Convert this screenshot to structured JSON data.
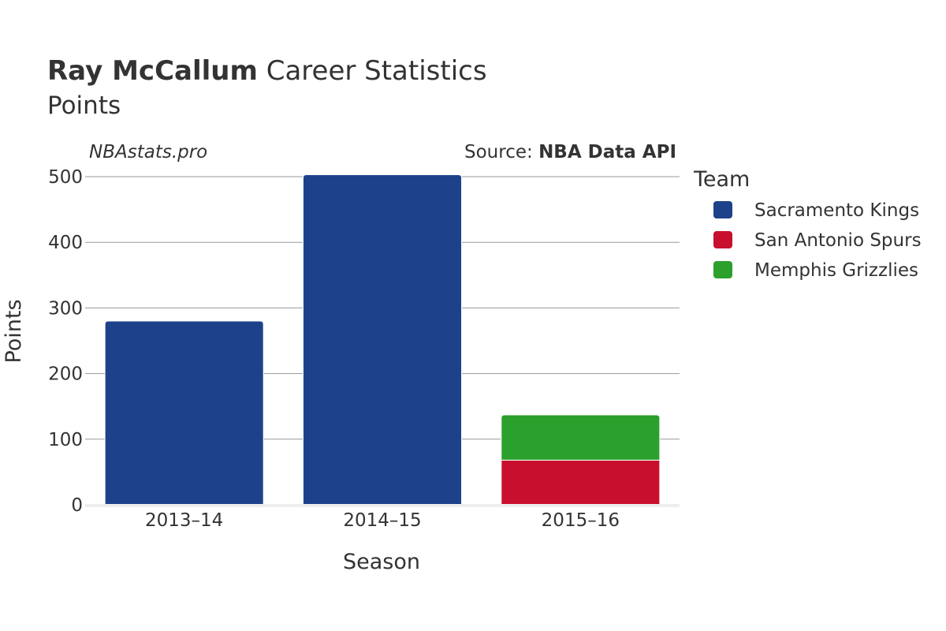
{
  "header": {
    "title_bold": "Ray McCallum",
    "title_rest": " Career Statistics",
    "subtitle": "Points"
  },
  "watermark": "NBAstats.pro",
  "source": {
    "prefix": "Source: ",
    "name": "NBA Data API"
  },
  "legend": {
    "title": "Team",
    "placement": "right",
    "items": [
      {
        "name": "Sacramento Kings",
        "color": "#1D428A"
      },
      {
        "name": "San Antonio Spurs",
        "color": "#C8102E"
      },
      {
        "name": "Memphis Grizzlies",
        "color": "#2CA02C"
      }
    ]
  },
  "chart_data": {
    "type": "bar",
    "stacked": true,
    "xlabel": "Season",
    "ylabel": "Points",
    "ylim": [
      0,
      500
    ],
    "yticks": [
      0,
      100,
      200,
      300,
      400,
      500
    ],
    "grid": true,
    "categories": [
      "2013–14",
      "2014–15",
      "2015–16"
    ],
    "series": [
      {
        "name": "Sacramento Kings",
        "color": "#1D428A",
        "values": [
          280,
          503,
          0
        ]
      },
      {
        "name": "San Antonio Spurs",
        "color": "#C8102E",
        "values": [
          0,
          0,
          68
        ]
      },
      {
        "name": "Memphis Grizzlies",
        "color": "#2CA02C",
        "values": [
          0,
          0,
          69
        ]
      }
    ]
  }
}
